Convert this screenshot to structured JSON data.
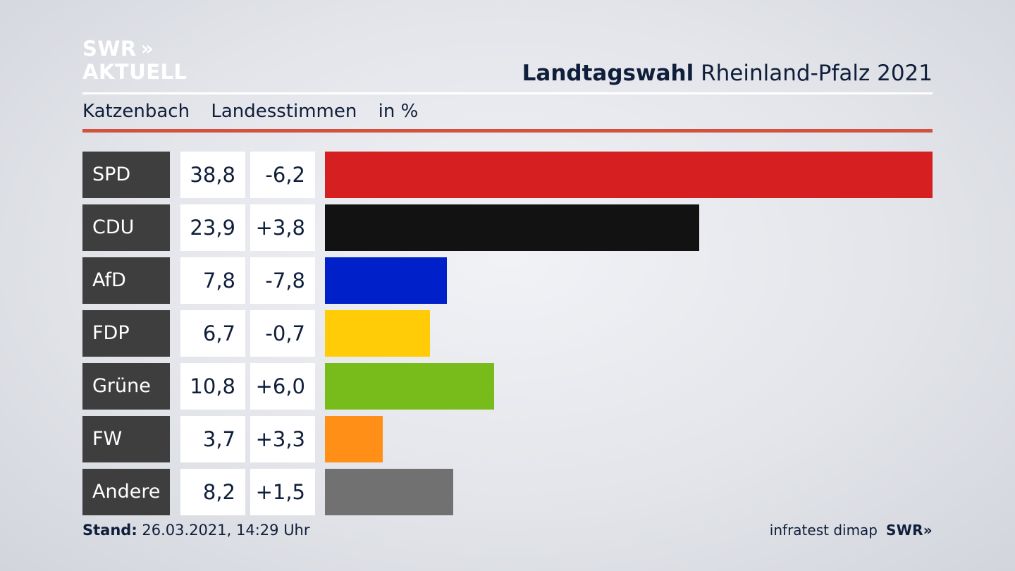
{
  "brand": {
    "logo_line1": "SWR",
    "logo_chevrons": "»",
    "logo_line2": "AKTUELL",
    "footer_source": "infratest dimap",
    "footer_brand": "SWR»"
  },
  "header": {
    "title_bold": "Landtagswahl",
    "title_rest": "Rheinland-Pfalz 2021",
    "location": "Katzenbach",
    "vote_type": "Landesstimmen",
    "unit": "in %"
  },
  "footer": {
    "stand_label": "Stand:",
    "stand_value": "26.03.2021, 14:29 Uhr"
  },
  "colors": {
    "SPD": "#d61f20",
    "CDU": "#121212",
    "AfD": "#0021c9",
    "FDP": "#ffcc07",
    "Grüne": "#78bc1b",
    "FW": "#ff8f16",
    "Andere": "#717171"
  },
  "chart_data": {
    "type": "bar",
    "orientation": "horizontal",
    "categories": [
      "SPD",
      "CDU",
      "AfD",
      "FDP",
      "Grüne",
      "FW",
      "Andere"
    ],
    "values": [
      38.8,
      23.9,
      7.8,
      6.7,
      10.8,
      3.7,
      8.2
    ],
    "value_labels": [
      "38,8",
      "23,9",
      "7,8",
      "6,7",
      "10,8",
      "3,7",
      "8,2"
    ],
    "diffs": [
      -6.2,
      3.8,
      -7.8,
      -0.7,
      6.0,
      3.3,
      1.5
    ],
    "diff_labels": [
      "-6,2",
      "+3,8",
      "-7,8",
      "-0,7",
      "+6,0",
      "+3,3",
      "+1,5"
    ],
    "xlim": [
      0,
      38.8
    ]
  }
}
